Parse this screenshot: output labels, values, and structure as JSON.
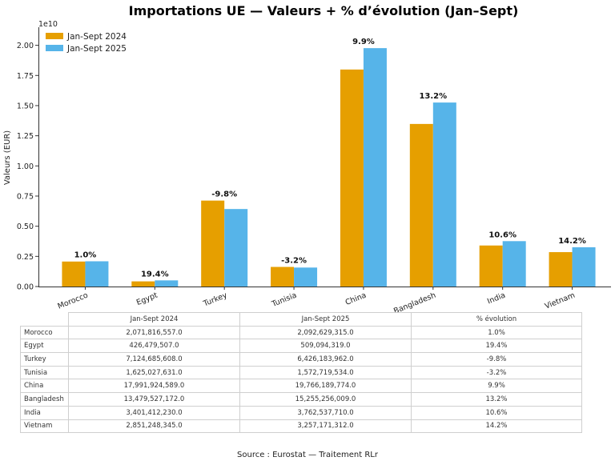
{
  "chart_data": {
    "type": "bar",
    "title": "Importations UE — Valeurs + % d’évolution (Jan–Sept)",
    "ylabel": "Valeurs (EUR)",
    "xlabel": "",
    "scale_label": "1e10",
    "ylim": [
      0,
      2.15
    ],
    "yticks": [
      "0.00",
      "0.25",
      "0.50",
      "0.75",
      "1.00",
      "1.25",
      "1.50",
      "1.75",
      "2.00"
    ],
    "categories": [
      "Morocco",
      "Egypt",
      "Turkey",
      "Tunisia",
      "China",
      "Bangladesh",
      "India",
      "Vietnam"
    ],
    "series": [
      {
        "name": "Jan-Sept 2024",
        "color": "#E69F00",
        "values": [
          0.2071816557,
          0.0426479507,
          0.7124685608,
          0.1625027631,
          1.7991924589,
          1.3479527172,
          0.340141223,
          0.2851248345
        ]
      },
      {
        "name": "Jan-Sept 2025",
        "color": "#56B4E9",
        "values": [
          0.2092629315,
          0.0509094319,
          0.6426183962,
          0.1572719534,
          1.9766189774,
          1.5255256009,
          0.376253771,
          0.325717131
        ]
      }
    ],
    "pct_labels": [
      "1.0%",
      "19.4%",
      "-9.8%",
      "-3.2%",
      "9.9%",
      "13.2%",
      "10.6%",
      "14.2%"
    ],
    "legend": {
      "placement": "top-left",
      "entries": [
        "Jan-Sept 2024",
        "Jan-Sept 2025"
      ]
    }
  },
  "table": {
    "headers": [
      "Jan-Sept 2024",
      "Jan-Sept 2025",
      "% évolution"
    ],
    "rows": [
      {
        "country": "Morocco",
        "v2024": "2,071,816,557.0",
        "v2025": "2,092,629,315.0",
        "pct": "1.0%"
      },
      {
        "country": "Egypt",
        "v2024": "426,479,507.0",
        "v2025": "509,094,319.0",
        "pct": "19.4%"
      },
      {
        "country": "Turkey",
        "v2024": "7,124,685,608.0",
        "v2025": "6,426,183,962.0",
        "pct": "-9.8%"
      },
      {
        "country": "Tunisia",
        "v2024": "1,625,027,631.0",
        "v2025": "1,572,719,534.0",
        "pct": "-3.2%"
      },
      {
        "country": "China",
        "v2024": "17,991,924,589.0",
        "v2025": "19,766,189,774.0",
        "pct": "9.9%"
      },
      {
        "country": "Bangladesh",
        "v2024": "13,479,527,172.0",
        "v2025": "15,255,256,009.0",
        "pct": "13.2%"
      },
      {
        "country": "India",
        "v2024": "3,401,412,230.0",
        "v2025": "3,762,537,710.0",
        "pct": "10.6%"
      },
      {
        "country": "Vietnam",
        "v2024": "2,851,248,345.0",
        "v2025": "3,257,171,312.0",
        "pct": "14.2%"
      }
    ]
  },
  "footer": {
    "source": "Source : Eurostat — Traitement RLr"
  }
}
